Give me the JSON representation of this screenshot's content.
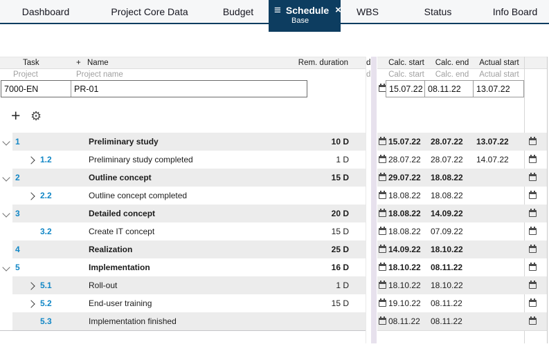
{
  "tabs": {
    "items": [
      {
        "label": "Dashboard"
      },
      {
        "label": "Project Core Data"
      },
      {
        "label": "Budget"
      },
      {
        "label": "Schedule",
        "sublabel": "Base",
        "active": true
      },
      {
        "label": "WBS"
      },
      {
        "label": "Status"
      },
      {
        "label": "Info Board"
      }
    ]
  },
  "icons": {
    "hamburger": "≡",
    "close": "×",
    "plus": "+",
    "gear": "⚙"
  },
  "colors": {
    "accent_navy": "#0d3d60",
    "link_blue": "#1287c6",
    "splitter_lavender": "#e7e1ed",
    "row_stripe": "#ececec"
  },
  "table": {
    "headers": {
      "task": "Task",
      "add": "+",
      "name": "Name",
      "rem_duration": "Rem. duration",
      "calc_start": "Calc. start",
      "calc_end": "Calc. end",
      "actual_start": "Actual start"
    },
    "subheaders": {
      "task": "Project",
      "name": "Project name",
      "calc_start": "Calc. start",
      "calc_end": "Calc. end",
      "actual_start": "Actual start"
    },
    "clipped_column_fragment": "d",
    "project_row": {
      "task_id": "7000-EN",
      "name": "PR-01",
      "calc_start": "15.07.22",
      "calc_end": "08.11.22",
      "actual_start": "13.07.22"
    },
    "rows": [
      {
        "num": "1",
        "level": 1,
        "chevron": "down",
        "bold": true,
        "name": "Preliminary study",
        "duration": "10 D",
        "calc_start": "15.07.22",
        "calc_end": "28.07.22",
        "actual_start": "13.07.22"
      },
      {
        "num": "1.2",
        "level": 2,
        "chevron": "right",
        "bold": false,
        "name": "Preliminary study completed",
        "duration": "1 D",
        "calc_start": "28.07.22",
        "calc_end": "28.07.22",
        "actual_start": "14.07.22"
      },
      {
        "num": "2",
        "level": 1,
        "chevron": "down",
        "bold": true,
        "name": "Outline concept",
        "duration": "15 D",
        "calc_start": "29.07.22",
        "calc_end": "18.08.22",
        "actual_start": ""
      },
      {
        "num": "2.2",
        "level": 2,
        "chevron": "right",
        "bold": false,
        "name": "Outline concept completed",
        "duration": "",
        "calc_start": "18.08.22",
        "calc_end": "18.08.22",
        "actual_start": ""
      },
      {
        "num": "3",
        "level": 1,
        "chevron": "down",
        "bold": true,
        "name": "Detailed concept",
        "duration": "20 D",
        "calc_start": "18.08.22",
        "calc_end": "14.09.22",
        "actual_start": ""
      },
      {
        "num": "3.2",
        "level": 2,
        "chevron": "none",
        "bold": false,
        "name": "Create IT concept",
        "duration": "15 D",
        "calc_start": "18.08.22",
        "calc_end": "07.09.22",
        "actual_start": ""
      },
      {
        "num": "4",
        "level": 1,
        "chevron": "none",
        "bold": true,
        "name": "Realization",
        "duration": "25 D",
        "calc_start": "14.09.22",
        "calc_end": "18.10.22",
        "actual_start": ""
      },
      {
        "num": "5",
        "level": 1,
        "chevron": "down",
        "bold": true,
        "name": "Implementation",
        "duration": "16 D",
        "calc_start": "18.10.22",
        "calc_end": "08.11.22",
        "actual_start": ""
      },
      {
        "num": "5.1",
        "level": 2,
        "chevron": "right",
        "bold": false,
        "name": "Roll-out",
        "duration": "1 D",
        "calc_start": "18.10.22",
        "calc_end": "18.10.22",
        "actual_start": ""
      },
      {
        "num": "5.2",
        "level": 2,
        "chevron": "right",
        "bold": false,
        "name": "End-user training",
        "duration": "15 D",
        "calc_start": "19.10.22",
        "calc_end": "08.11.22",
        "actual_start": ""
      },
      {
        "num": "5.3",
        "level": 2,
        "chevron": "none",
        "bold": false,
        "name": "Implementation finished",
        "duration": "",
        "calc_start": "08.11.22",
        "calc_end": "08.11.22",
        "actual_start": ""
      }
    ]
  }
}
